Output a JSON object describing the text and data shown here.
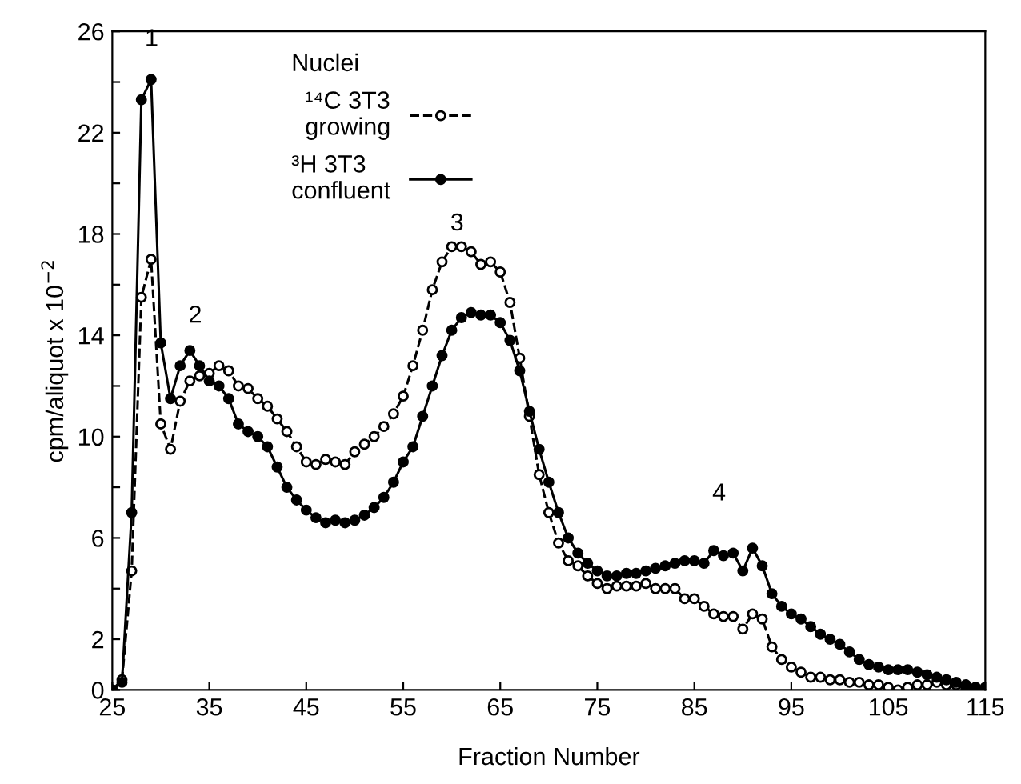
{
  "chart_data": {
    "type": "line",
    "xlabel": "Fraction Number",
    "ylabel": "cpm/aliquot x 10$^{−2}$",
    "legend_title": "Nuclei",
    "legend": "top left",
    "marker": "circle",
    "x": [
      25,
      26,
      27,
      28,
      29,
      30,
      31,
      32,
      33,
      34,
      35,
      36,
      37,
      38,
      39,
      40,
      41,
      42,
      43,
      44,
      45,
      46,
      47,
      48,
      49,
      50,
      51,
      52,
      53,
      54,
      55,
      56,
      57,
      58,
      59,
      60,
      61,
      62,
      63,
      64,
      65,
      66,
      67,
      68,
      69,
      70,
      71,
      72,
      73,
      74,
      75,
      76,
      77,
      78,
      79,
      80,
      81,
      82,
      83,
      84,
      85,
      86,
      87,
      88,
      89,
      90,
      91,
      92,
      93,
      94,
      95,
      96,
      97,
      98,
      99,
      100,
      101,
      102,
      103,
      104,
      105,
      106,
      107,
      108,
      109,
      110,
      111,
      112,
      113,
      114,
      115
    ],
    "series": [
      {
        "name": "¹⁴C 3T3\ngrowing",
        "color": "#000000",
        "line_style": "dashed",
        "values": [
          0,
          0.4,
          4.7,
          15.5,
          17.0,
          10.5,
          9.5,
          11.4,
          12.2,
          12.4,
          12.5,
          12.8,
          12.6,
          12.0,
          11.9,
          11.5,
          11.2,
          10.7,
          10.2,
          9.6,
          9.0,
          8.9,
          9.1,
          9.0,
          8.9,
          9.4,
          9.7,
          10.0,
          10.4,
          10.9,
          11.6,
          12.8,
          14.2,
          15.8,
          16.9,
          17.5,
          17.5,
          17.3,
          16.8,
          16.9,
          16.5,
          15.3,
          13.1,
          10.8,
          8.5,
          7.0,
          5.8,
          5.1,
          4.9,
          4.5,
          4.2,
          4.0,
          4.1,
          4.1,
          4.1,
          4.2,
          4.0,
          4.0,
          4.0,
          3.6,
          3.6,
          3.3,
          3.0,
          2.9,
          2.9,
          2.4,
          3.0,
          2.8,
          1.7,
          1.2,
          0.9,
          0.7,
          0.5,
          0.5,
          0.4,
          0.4,
          0.3,
          0.3,
          0.2,
          0.2,
          0.1,
          0.0,
          0.1,
          0.2,
          0.2,
          0.3,
          0.2,
          0.2,
          0.1,
          0,
          0
        ]
      },
      {
        "name": "³H 3T3\nconfluent",
        "color": "#000000",
        "line_style": "solid",
        "values": [
          0,
          0.3,
          7,
          23.3,
          24.1,
          13.7,
          11.5,
          12.8,
          13.4,
          12.8,
          12.2,
          12.0,
          11.5,
          10.5,
          10.2,
          10.0,
          9.6,
          8.8,
          8.0,
          7.5,
          7.1,
          6.8,
          6.6,
          6.7,
          6.6,
          6.7,
          6.9,
          7.2,
          7.6,
          8.2,
          9.0,
          9.6,
          10.8,
          12.0,
          13.2,
          14.2,
          14.7,
          14.9,
          14.8,
          14.8,
          14.5,
          13.8,
          12.6,
          11.0,
          9.5,
          8.2,
          7.0,
          6.0,
          5.4,
          5.0,
          4.7,
          4.5,
          4.5,
          4.6,
          4.6,
          4.7,
          4.8,
          4.9,
          5.0,
          5.1,
          5.1,
          5.0,
          5.5,
          5.3,
          5.4,
          4.7,
          5.6,
          4.9,
          3.8,
          3.3,
          3.0,
          2.8,
          2.5,
          2.2,
          2.0,
          1.8,
          1.5,
          1.2,
          1.0,
          0.9,
          0.8,
          0.8,
          0.8,
          0.7,
          0.6,
          0.5,
          0.4,
          0.3,
          0.2,
          0.1,
          0.1
        ]
      }
    ],
    "annotations": [
      "1",
      "2",
      "3",
      "4"
    ],
    "xlim": [
      25,
      115
    ],
    "xticks": [
      25,
      35,
      45,
      55,
      65,
      75,
      85,
      95,
      105,
      115
    ],
    "ylim": [
      0,
      26
    ],
    "yticks": [
      0,
      2,
      {
        "value": 4,
        "label": null
      },
      6,
      {
        "value": 8,
        "label": null
      },
      10,
      {
        "value": 12,
        "label": null
      },
      14,
      {
        "value": 16,
        "label": null
      },
      18,
      {
        "value": 20,
        "label": null
      },
      22,
      {
        "value": 24,
        "label": null
      },
      26
    ],
    "grid": false
  }
}
